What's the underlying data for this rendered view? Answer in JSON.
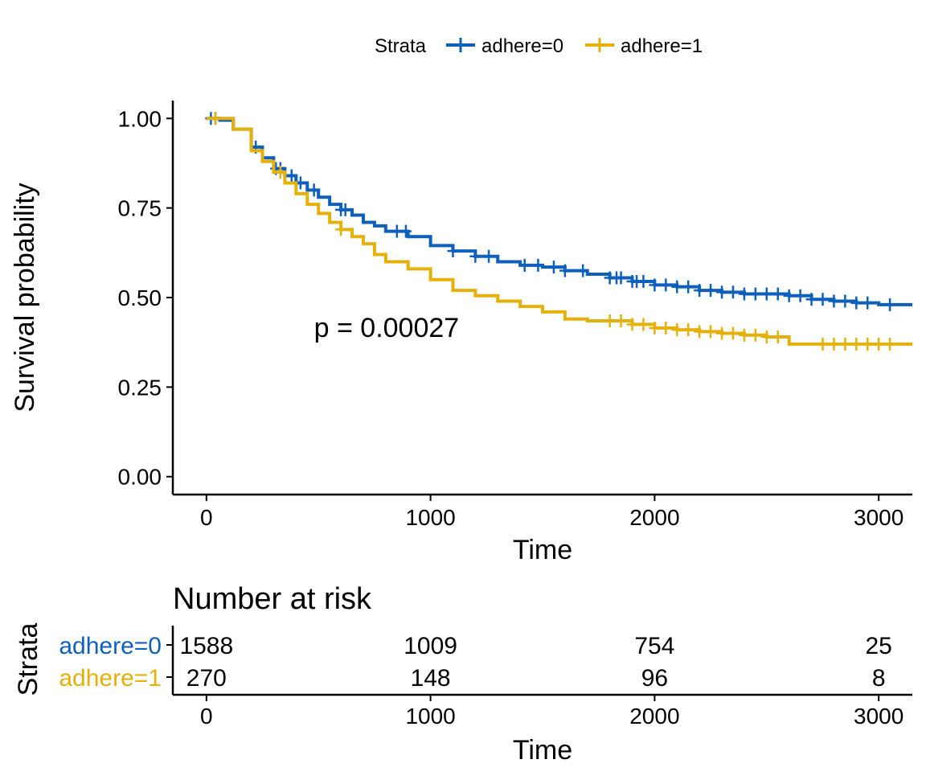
{
  "chart_data": [
    {
      "type": "line",
      "subtype": "kaplan-meier",
      "title": "",
      "xlabel": "Time",
      "ylabel": "Survival probability",
      "xlim": [
        -150,
        3150
      ],
      "ylim": [
        -0.05,
        1.05
      ],
      "xticks": [
        0,
        1000,
        2000,
        3000
      ],
      "xtick_labels": [
        "0",
        "1000",
        "2000",
        "3000"
      ],
      "yticks": [
        0.0,
        0.25,
        0.5,
        0.75,
        1.0
      ],
      "ytick_labels": [
        "0.00",
        "0.25",
        "0.50",
        "0.75",
        "1.00"
      ],
      "grid": false,
      "legend": {
        "title": "Strata",
        "placement": "top",
        "entries": [
          "adhere=0",
          "adhere=1"
        ]
      },
      "annotation": "p = 0.00027",
      "annotation_pos": {
        "x": 480,
        "y": 0.39
      },
      "series": [
        {
          "name": "adhere=0",
          "color": "#0f5fbd",
          "x": [
            0,
            60,
            120,
            200,
            250,
            300,
            350,
            400,
            450,
            500,
            550,
            600,
            650,
            700,
            750,
            800,
            900,
            1000,
            1100,
            1200,
            1300,
            1400,
            1500,
            1600,
            1700,
            1800,
            1900,
            2000,
            2100,
            2200,
            2300,
            2400,
            2500,
            2600,
            2700,
            2800,
            2900,
            3000,
            3150
          ],
          "y": [
            1.0,
            0.995,
            0.97,
            0.92,
            0.89,
            0.86,
            0.84,
            0.82,
            0.8,
            0.78,
            0.76,
            0.745,
            0.73,
            0.71,
            0.7,
            0.685,
            0.67,
            0.645,
            0.63,
            0.615,
            0.6,
            0.59,
            0.585,
            0.575,
            0.565,
            0.555,
            0.545,
            0.535,
            0.53,
            0.52,
            0.515,
            0.51,
            0.51,
            0.505,
            0.495,
            0.49,
            0.485,
            0.48,
            0.48
          ],
          "censor_x": [
            20,
            40,
            220,
            310,
            330,
            380,
            420,
            480,
            600,
            620,
            850,
            890,
            1100,
            1200,
            1260,
            1420,
            1480,
            1550,
            1600,
            1680,
            1800,
            1830,
            1850,
            1900,
            1920,
            1950,
            2000,
            2050,
            2100,
            2150,
            2200,
            2250,
            2300,
            2350,
            2400,
            2450,
            2500,
            2550,
            2600,
            2650,
            2700,
            2750,
            2800,
            2850,
            2900,
            2950,
            3050
          ]
        },
        {
          "name": "adhere=1",
          "color": "#e6b00a",
          "x": [
            0,
            60,
            120,
            200,
            250,
            300,
            350,
            400,
            450,
            500,
            550,
            600,
            650,
            700,
            750,
            800,
            900,
            1000,
            1100,
            1200,
            1300,
            1400,
            1500,
            1600,
            1700,
            1800,
            1900,
            2000,
            2100,
            2200,
            2300,
            2400,
            2500,
            2600,
            3150
          ],
          "y": [
            1.0,
            1.0,
            0.97,
            0.91,
            0.88,
            0.85,
            0.82,
            0.79,
            0.76,
            0.735,
            0.71,
            0.69,
            0.67,
            0.65,
            0.62,
            0.6,
            0.58,
            0.55,
            0.52,
            0.505,
            0.49,
            0.475,
            0.46,
            0.44,
            0.435,
            0.435,
            0.425,
            0.415,
            0.41,
            0.405,
            0.4,
            0.395,
            0.39,
            0.37,
            0.37
          ],
          "censor_x": [
            40,
            330,
            600,
            1800,
            1850,
            1900,
            1950,
            2000,
            2050,
            2100,
            2150,
            2200,
            2250,
            2300,
            2350,
            2400,
            2450,
            2500,
            2550,
            2750,
            2800,
            2850,
            2900,
            2950,
            3000,
            3050
          ]
        }
      ]
    },
    {
      "type": "table",
      "title": "Number at risk",
      "xlabel": "Time",
      "ylabel": "Strata",
      "xticks": [
        0,
        1000,
        2000,
        3000
      ],
      "xtick_labels": [
        "0",
        "1000",
        "2000",
        "3000"
      ],
      "rows": [
        {
          "name": "adhere=0",
          "color": "#0f5fbd",
          "values": [
            "1588",
            "1009",
            "754",
            "25"
          ]
        },
        {
          "name": "adhere=1",
          "color": "#e6b00a",
          "values": [
            "270",
            "148",
            "96",
            "8"
          ]
        }
      ]
    }
  ]
}
